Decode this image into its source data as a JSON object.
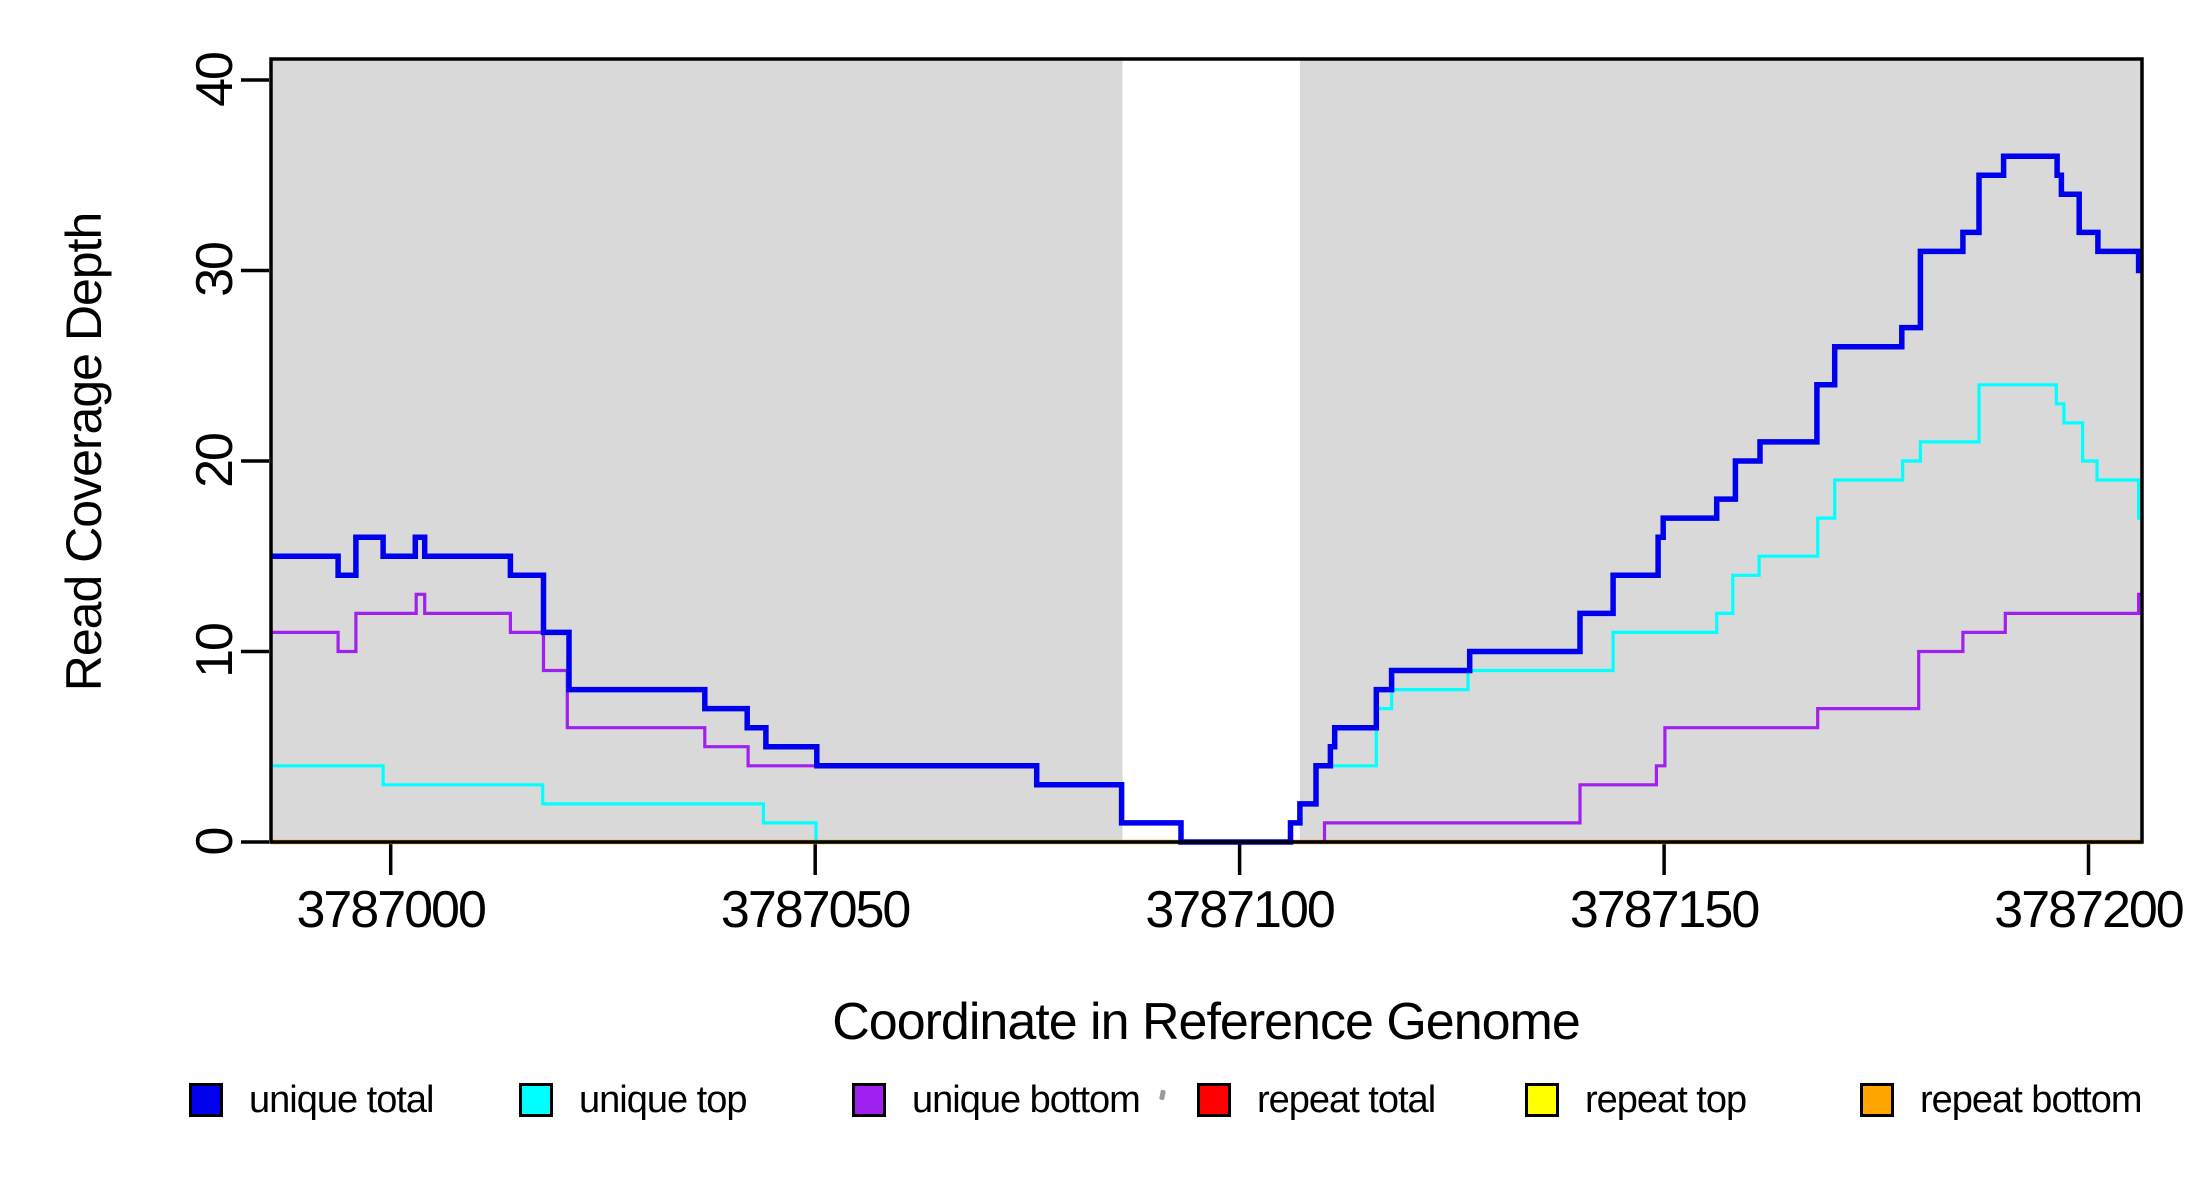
{
  "chart_data": {
    "type": "line",
    "subtype": "step",
    "title": "",
    "xlabel": "Coordinate in Reference Genome",
    "ylabel": "Read Coverage Depth",
    "xlim": [
      3786985.9,
      3787206.3
    ],
    "ylim": [
      0,
      41.1
    ],
    "grid": false,
    "plot_background": "#FFFFFF",
    "shade_color": "#D9D9D9",
    "axis_color": "#000000",
    "shaded_regions": [
      {
        "from": 3786985.9,
        "to": 3787086.2
      },
      {
        "from": 3787107.1,
        "to": 3787206.3
      }
    ],
    "x_ticks": {
      "values": [
        3787000,
        3787050,
        3787100,
        3787150,
        3787200
      ],
      "labels": [
        "3787000",
        "3787050",
        "3787100",
        "3787150",
        "3787200"
      ]
    },
    "y_ticks": {
      "values": [
        0,
        10,
        20,
        30,
        40
      ],
      "labels": [
        "0",
        "10",
        "20",
        "30",
        "40"
      ]
    },
    "series": [
      {
        "name": "unique total",
        "color": "#0000EE",
        "points": [
          [
            3786985.9,
            15
          ],
          [
            3786993.8,
            14
          ],
          [
            3786995.9,
            16
          ],
          [
            3786999.1,
            15
          ],
          [
            3787002.9,
            16
          ],
          [
            3787004,
            15
          ],
          [
            3787014.1,
            14
          ],
          [
            3787018,
            11
          ],
          [
            3787021,
            8
          ],
          [
            3787037,
            7
          ],
          [
            3787042,
            6
          ],
          [
            3787044.2,
            5
          ],
          [
            3787050.2,
            4
          ],
          [
            3787076.1,
            3
          ],
          [
            3787086.1,
            1
          ],
          [
            3787093.1,
            0
          ],
          [
            3787106,
            1
          ],
          [
            3787107.1,
            2
          ],
          [
            3787109,
            4
          ],
          [
            3787110.7,
            5
          ],
          [
            3787111.2,
            6
          ],
          [
            3787116.1,
            8
          ],
          [
            3787117.9,
            9
          ],
          [
            3787127.1,
            10
          ],
          [
            3787140.1,
            12
          ],
          [
            3787144,
            14
          ],
          [
            3787149.3,
            16
          ],
          [
            3787149.9,
            17
          ],
          [
            3787156.2,
            18
          ],
          [
            3787158.4,
            20
          ],
          [
            3787161.3,
            21
          ],
          [
            3787168,
            24
          ],
          [
            3787170.1,
            26
          ],
          [
            3787178,
            27
          ],
          [
            3787180.2,
            31
          ],
          [
            3787185.2,
            32
          ],
          [
            3787187.1,
            35
          ],
          [
            3787190,
            36
          ],
          [
            3787196.3,
            35
          ],
          [
            3787196.8,
            34
          ],
          [
            3787198.9,
            32
          ],
          [
            3787201.1,
            31
          ],
          [
            3787205.9,
            30
          ]
        ]
      },
      {
        "name": "unique top",
        "color": "#00FFFF",
        "points": [
          [
            3786985.9,
            4
          ],
          [
            3786999.1,
            3
          ],
          [
            3787017.9,
            2
          ],
          [
            3787043.9,
            1
          ],
          [
            3787050.1,
            0
          ],
          [
            3787106,
            1
          ],
          [
            3787107.1,
            2
          ],
          [
            3787109,
            4
          ],
          [
            3787116.1,
            7
          ],
          [
            3787117.9,
            8
          ],
          [
            3787126.9,
            9
          ],
          [
            3787144,
            11
          ],
          [
            3787156.2,
            12
          ],
          [
            3787158.1,
            14
          ],
          [
            3787161.2,
            15
          ],
          [
            3787168.1,
            17
          ],
          [
            3787170.1,
            19
          ],
          [
            3787178.1,
            20
          ],
          [
            3787180.2,
            21
          ],
          [
            3787187.1,
            24
          ],
          [
            3787196.2,
            23
          ],
          [
            3787197.1,
            22
          ],
          [
            3787199.3,
            20
          ],
          [
            3787201,
            19
          ],
          [
            3787205.9,
            17
          ]
        ]
      },
      {
        "name": "unique bottom",
        "color": "#A020F0",
        "points": [
          [
            3786985.9,
            11
          ],
          [
            3786993.8,
            10
          ],
          [
            3786995.9,
            12
          ],
          [
            3787003,
            13
          ],
          [
            3787004,
            12
          ],
          [
            3787014.1,
            11
          ],
          [
            3787018,
            9
          ],
          [
            3787020.8,
            6
          ],
          [
            3787037,
            5
          ],
          [
            3787042.1,
            4
          ],
          [
            3787076.1,
            3
          ],
          [
            3787086.1,
            1
          ],
          [
            3787093.1,
            0
          ],
          [
            3787110,
            1
          ],
          [
            3787140.1,
            3
          ],
          [
            3787149.1,
            4
          ],
          [
            3787150.1,
            6
          ],
          [
            3787168.1,
            7
          ],
          [
            3787180,
            10
          ],
          [
            3787185.2,
            11
          ],
          [
            3787190.2,
            12
          ],
          [
            3787205.9,
            13
          ]
        ]
      },
      {
        "name": "repeat total",
        "color": "#FF0000",
        "points": [
          [
            3786985.9,
            0
          ]
        ]
      },
      {
        "name": "repeat top",
        "color": "#FFFF00",
        "points": [
          [
            3786985.9,
            0
          ]
        ]
      },
      {
        "name": "repeat bottom",
        "color": "#FFA500",
        "points": [
          [
            3786985.9,
            0
          ]
        ]
      }
    ],
    "legend": {
      "position": "bottom",
      "items": [
        {
          "label": "unique total",
          "color": "#0000EE"
        },
        {
          "label": "unique top",
          "color": "#00FFFF"
        },
        {
          "label": "unique bottom",
          "color": "#A020F0"
        },
        {
          "label": "repeat total",
          "color": "#FF0000"
        },
        {
          "label": "repeat top",
          "color": "#FFFF00"
        },
        {
          "label": "repeat bottom",
          "color": "#FFA500"
        }
      ]
    }
  }
}
